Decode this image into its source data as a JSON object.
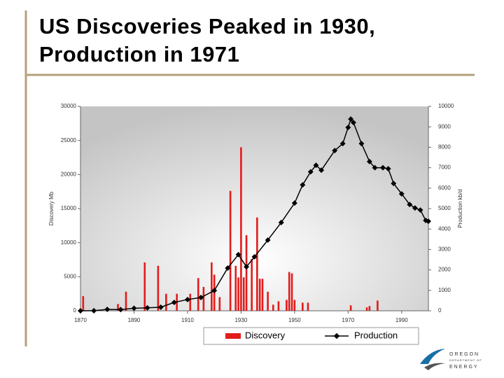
{
  "title": "US Discoveries Peaked in 1930, Production in 1971",
  "logo": {
    "line1": "OREGON",
    "line2": "DEPARTMENT OF",
    "line3": "ENERGY"
  },
  "chart_data": {
    "type": "combo",
    "ylabel": "Discovery Mb",
    "y2label": "Production kb/d",
    "xlim": [
      1870,
      2000
    ],
    "xticks": [
      1870,
      1890,
      1910,
      1930,
      1950,
      1970,
      1990
    ],
    "ylim": [
      0,
      30000
    ],
    "yticks": [
      0,
      5000,
      10000,
      15000,
      20000,
      25000,
      30000
    ],
    "y2lim": [
      0,
      10000
    ],
    "y2ticks": [
      0,
      1000,
      2000,
      3000,
      4000,
      5000,
      6000,
      7000,
      8000,
      9000,
      10000
    ],
    "legend": "bottom",
    "series": [
      {
        "name": "Discovery",
        "type": "bar",
        "color": "#e31b1b",
        "x": [
          1871,
          1884,
          1887,
          1894,
          1899,
          1902,
          1906,
          1911,
          1914,
          1916,
          1919,
          1920,
          1922,
          1926,
          1928,
          1929,
          1930,
          1931,
          1932,
          1934,
          1936,
          1937,
          1938,
          1940,
          1942,
          1944,
          1947,
          1948,
          1949,
          1950,
          1953,
          1955,
          1971,
          1977,
          1978,
          1981
        ],
        "values": [
          2150,
          1000,
          2800,
          7100,
          6600,
          2500,
          2500,
          2500,
          4800,
          3500,
          7100,
          5300,
          2000,
          17600,
          6600,
          4900,
          24000,
          4900,
          11100,
          7600,
          13700,
          4700,
          4700,
          2800,
          900,
          1400,
          1600,
          5700,
          5500,
          1600,
          1200,
          1200,
          800,
          500,
          700,
          1500
        ]
      },
      {
        "name": "Production",
        "type": "line",
        "color": "#000000",
        "axis": "y2",
        "x": [
          1870,
          1875,
          1880,
          1885,
          1890,
          1895,
          1900,
          1905,
          1910,
          1915,
          1920,
          1925,
          1929,
          1932,
          1935,
          1940,
          1945,
          1950,
          1953,
          1956,
          1958,
          1960,
          1965,
          1968,
          1970,
          1971,
          1972,
          1975,
          1978,
          1980,
          1983,
          1985,
          1987,
          1990,
          1993,
          1995,
          1997,
          1999,
          2000
        ],
        "values": [
          0,
          5,
          70,
          60,
          125,
          145,
          175,
          410,
          550,
          650,
          990,
          2090,
          2750,
          2150,
          2640,
          3460,
          4320,
          5270,
          6160,
          6800,
          7120,
          6880,
          7840,
          8180,
          8970,
          9380,
          9210,
          8180,
          7300,
          7000,
          7000,
          6950,
          6230,
          5720,
          5200,
          5030,
          4930,
          4420,
          4380
        ]
      }
    ]
  }
}
